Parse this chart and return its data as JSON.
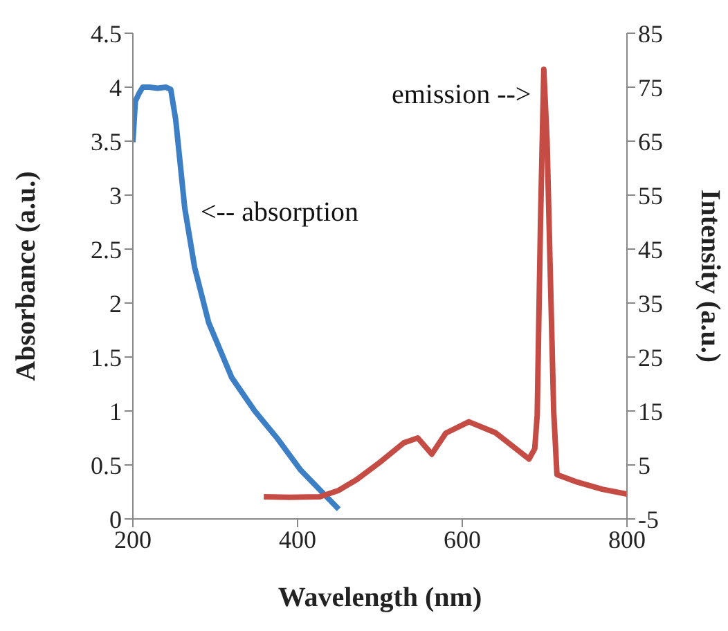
{
  "chart_data": {
    "type": "line",
    "xlabel": "Wavelength (nm)",
    "ylabel": "Absorbance (a.u.)",
    "y2label": "Intensity (a.u.)",
    "xlim": [
      200,
      800
    ],
    "xticks": [
      200,
      400,
      600,
      800
    ],
    "ylim": [
      0,
      4.5
    ],
    "yticks": [
      0,
      0.5,
      1,
      1.5,
      2,
      2.5,
      3,
      3.5,
      4,
      4.5
    ],
    "y2lim": [
      -5,
      85
    ],
    "y2ticks": [
      -5,
      5,
      15,
      25,
      35,
      45,
      55,
      65,
      75,
      85
    ],
    "grid": false,
    "marker": "none",
    "line_style": "solid",
    "annotations": [
      "<-- absorption",
      "emission -->"
    ],
    "series": [
      {
        "color": "#3d7fc4",
        "x": [
          200,
          203,
          208,
          212,
          220,
          230,
          240,
          246,
          252,
          263,
          275,
          292,
          320,
          348,
          376,
          404,
          450
        ],
        "values": [
          3.49,
          3.87,
          3.95,
          4.0,
          4.0,
          3.99,
          4.0,
          3.98,
          3.7,
          2.88,
          2.33,
          1.82,
          1.31,
          1.0,
          0.74,
          0.45,
          0.09
        ]
      },
      {
        "color": "#c44c44",
        "axis": "y2",
        "x": [
          359,
          390,
          427,
          450,
          472,
          500,
          529,
          546,
          563,
          580,
          608,
          640,
          681,
          688,
          691,
          695,
          699,
          703,
          707,
          711,
          715,
          740,
          770,
          800
        ],
        "values": [
          -0.9,
          -1.0,
          -0.9,
          0.3,
          2.3,
          5.5,
          9.1,
          10,
          7.0,
          10.9,
          13.0,
          11.0,
          6.1,
          8.0,
          14.2,
          50,
          78.3,
          65,
          39.9,
          15,
          3.2,
          1.8,
          0.5,
          -0.4
        ]
      }
    ]
  }
}
